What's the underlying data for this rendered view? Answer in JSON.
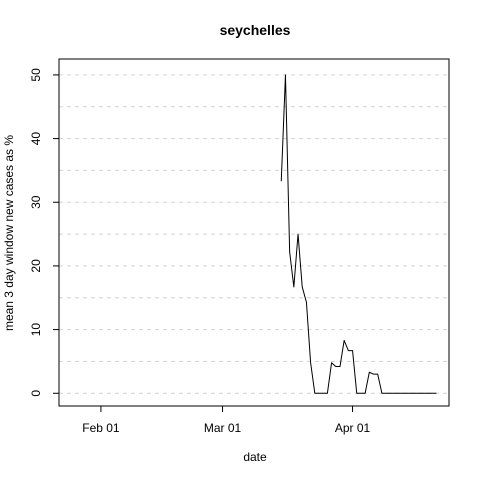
{
  "chart_data": {
    "type": "line",
    "title": "seychelles",
    "xlabel": "date",
    "ylabel": "mean  3  day window new cases as %",
    "x_ticks": [
      "Feb 01",
      "Mar 01",
      "Apr 01"
    ],
    "y_ticks": [
      0,
      10,
      20,
      30,
      40,
      50
    ],
    "xlim": [
      "2020-01-22",
      "2020-04-24"
    ],
    "ylim": [
      -2,
      52.5
    ],
    "grid": {
      "horizontal": true,
      "dashed": true
    },
    "series": [
      {
        "color": "#000000",
        "points": [
          {
            "x": "2020-03-15",
            "y": 33.3
          },
          {
            "x": "2020-03-16",
            "y": 50.0
          },
          {
            "x": "2020-03-17",
            "y": 22.2
          },
          {
            "x": "2020-03-18",
            "y": 16.7
          },
          {
            "x": "2020-03-19",
            "y": 25.0
          },
          {
            "x": "2020-03-20",
            "y": 16.7
          },
          {
            "x": "2020-03-21",
            "y": 14.3
          },
          {
            "x": "2020-03-22",
            "y": 4.8
          },
          {
            "x": "2020-03-23",
            "y": 0
          },
          {
            "x": "2020-03-24",
            "y": 0
          },
          {
            "x": "2020-03-25",
            "y": 0
          },
          {
            "x": "2020-03-26",
            "y": 0
          },
          {
            "x": "2020-03-27",
            "y": 4.8
          },
          {
            "x": "2020-03-28",
            "y": 4.2
          },
          {
            "x": "2020-03-29",
            "y": 4.2
          },
          {
            "x": "2020-03-30",
            "y": 8.3
          },
          {
            "x": "2020-03-31",
            "y": 6.7
          },
          {
            "x": "2020-04-01",
            "y": 6.7
          },
          {
            "x": "2020-04-02",
            "y": 0
          },
          {
            "x": "2020-04-03",
            "y": 0
          },
          {
            "x": "2020-04-04",
            "y": 0
          },
          {
            "x": "2020-04-05",
            "y": 3.3
          },
          {
            "x": "2020-04-06",
            "y": 3.0
          },
          {
            "x": "2020-04-07",
            "y": 3.0
          },
          {
            "x": "2020-04-08",
            "y": 0
          },
          {
            "x": "2020-04-09",
            "y": 0
          },
          {
            "x": "2020-04-10",
            "y": 0
          },
          {
            "x": "2020-04-11",
            "y": 0
          },
          {
            "x": "2020-04-12",
            "y": 0
          },
          {
            "x": "2020-04-13",
            "y": 0
          },
          {
            "x": "2020-04-14",
            "y": 0
          },
          {
            "x": "2020-04-15",
            "y": 0
          },
          {
            "x": "2020-04-16",
            "y": 0
          },
          {
            "x": "2020-04-17",
            "y": 0
          },
          {
            "x": "2020-04-18",
            "y": 0
          },
          {
            "x": "2020-04-19",
            "y": 0
          },
          {
            "x": "2020-04-20",
            "y": 0
          },
          {
            "x": "2020-04-21",
            "y": 0
          }
        ]
      }
    ],
    "grid_color": "#d3d3d3"
  }
}
